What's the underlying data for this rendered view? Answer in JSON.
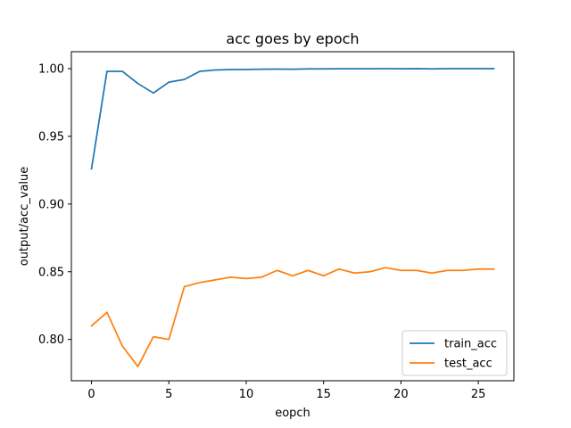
{
  "chart_data": {
    "type": "line",
    "title": "acc goes by epoch",
    "xlabel": "eopch",
    "ylabel": "output/acc_value",
    "xlim": [
      -1.3,
      27.3
    ],
    "ylim": [
      0.7695,
      1.0125
    ],
    "xticks": [
      0,
      5,
      10,
      15,
      20,
      25
    ],
    "xtick_labels": [
      "0",
      "5",
      "10",
      "15",
      "20",
      "25"
    ],
    "yticks": [
      0.8,
      0.85,
      0.9,
      0.95,
      1.0
    ],
    "ytick_labels": [
      "0.80",
      "0.85",
      "0.90",
      "0.95",
      "1.00"
    ],
    "grid": false,
    "legend_position": "lower-right",
    "x": [
      0,
      1,
      2,
      3,
      4,
      5,
      6,
      7,
      8,
      9,
      10,
      11,
      12,
      13,
      14,
      15,
      16,
      17,
      18,
      19,
      20,
      21,
      22,
      23,
      24,
      25,
      26
    ],
    "series": [
      {
        "name": "train_acc",
        "color": "#1f77b4",
        "values": [
          0.926,
          0.998,
          0.998,
          0.989,
          0.982,
          0.99,
          0.992,
          0.998,
          0.999,
          0.9993,
          0.9994,
          0.9996,
          0.9997,
          0.9996,
          0.9998,
          0.9998,
          0.9999,
          0.9999,
          0.9999,
          1.0,
          0.9999,
          1.0,
          0.9998,
          1.0,
          1.0,
          1.0,
          1.0
        ]
      },
      {
        "name": "test_acc",
        "color": "#ff7f0e",
        "values": [
          0.81,
          0.82,
          0.795,
          0.78,
          0.802,
          0.8,
          0.839,
          0.842,
          0.844,
          0.846,
          0.845,
          0.846,
          0.851,
          0.847,
          0.851,
          0.847,
          0.852,
          0.849,
          0.85,
          0.853,
          0.851,
          0.851,
          0.849,
          0.851,
          0.851,
          0.852,
          0.852
        ]
      }
    ]
  }
}
